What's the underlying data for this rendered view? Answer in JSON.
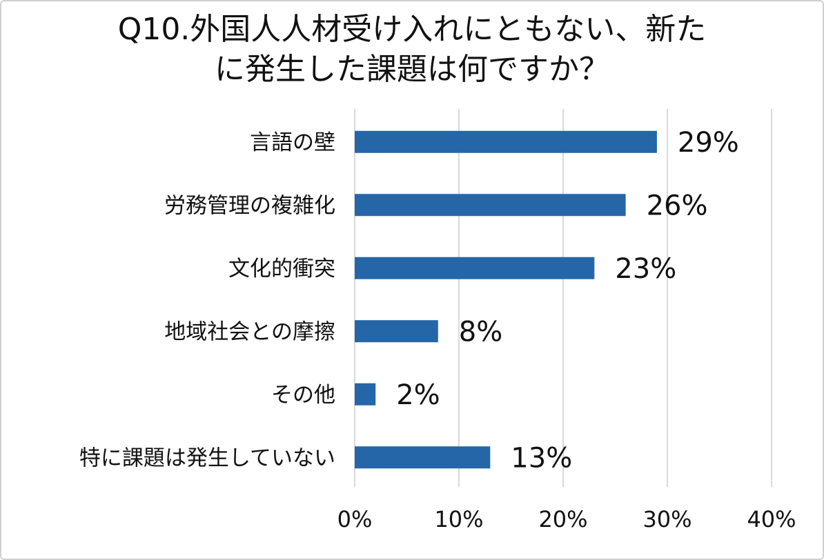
{
  "chart_data": {
    "type": "bar",
    "orientation": "horizontal",
    "title": [
      "Q10.外国人人材受け入れにともない、新た",
      "に発生した課題は何ですか？"
    ],
    "categories": [
      "言語の壁",
      "労務管理の複雑化",
      "文化的衝突",
      "地域社会との摩擦",
      "その他",
      "特に課題は発生していない"
    ],
    "values": [
      29,
      26,
      23,
      8,
      2,
      13
    ],
    "data_labels": [
      "29%",
      "26%",
      "23%",
      "8%",
      "2%",
      "13%"
    ],
    "xlim": [
      0,
      40
    ],
    "x_ticks": [
      0,
      10,
      20,
      30,
      40
    ],
    "x_tick_labels": [
      "0%",
      "10%",
      "20%",
      "30%",
      "40%"
    ],
    "xlabel": "",
    "ylabel": "",
    "grid": "vertical",
    "legend": "none",
    "bar_color": "#2566a8",
    "grid_color": "#d9d9d9"
  }
}
